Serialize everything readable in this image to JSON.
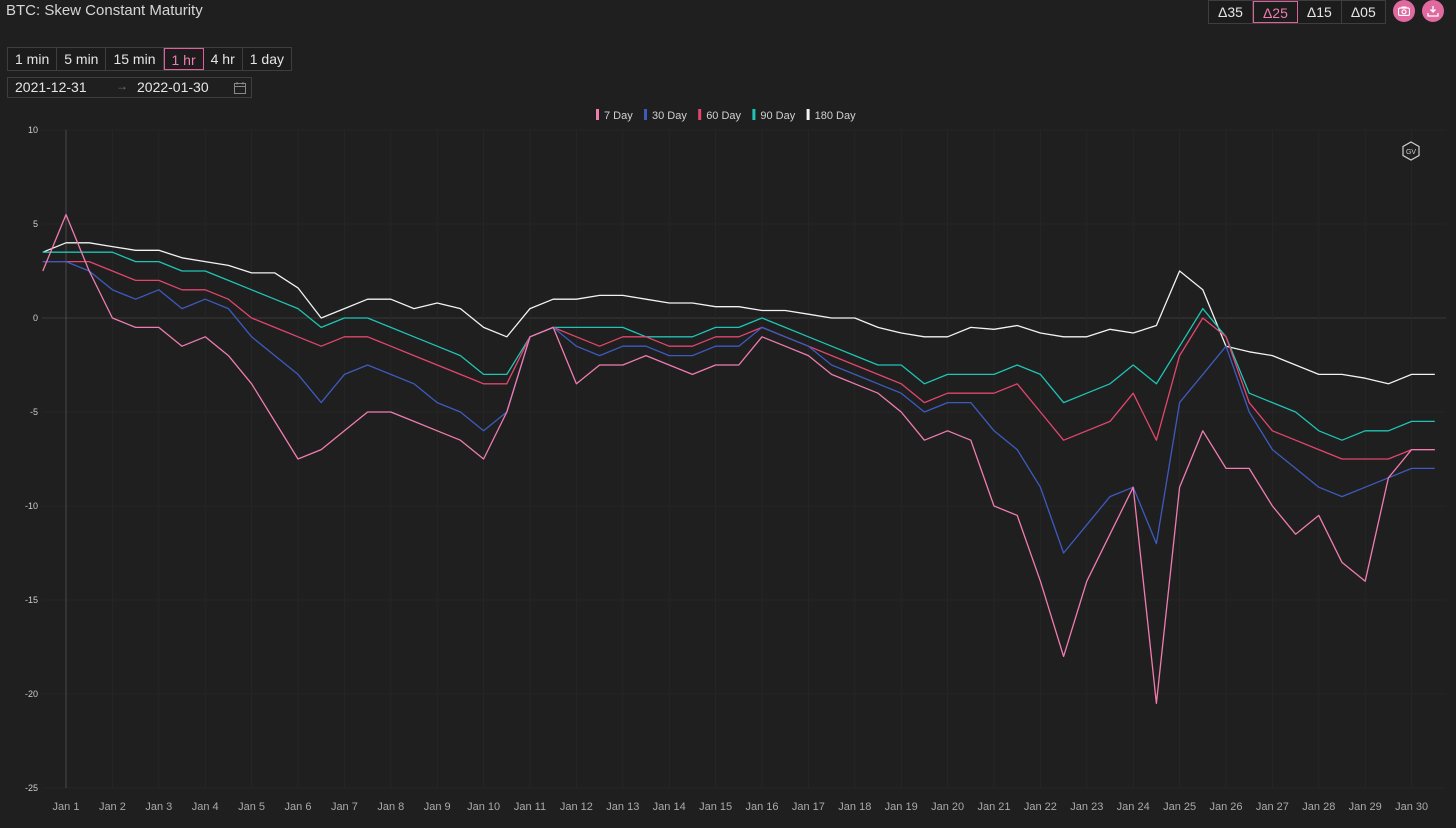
{
  "app": {
    "title": "BTC: Skew Constant Maturity"
  },
  "interval_buttons": [
    {
      "label": "1 min",
      "active": false
    },
    {
      "label": "5 min",
      "active": false
    },
    {
      "label": "15 min",
      "active": false
    },
    {
      "label": "1 hr",
      "active": true
    },
    {
      "label": "4 hr",
      "active": false
    },
    {
      "label": "1 day",
      "active": false
    }
  ],
  "delta_buttons": [
    {
      "label": "Δ35",
      "active": false
    },
    {
      "label": "Δ25",
      "active": true
    },
    {
      "label": "Δ15",
      "active": false
    },
    {
      "label": "Δ05",
      "active": false
    }
  ],
  "toolbar_icons": [
    "camera-icon",
    "download-icon"
  ],
  "date_range": {
    "start": "2021-12-31",
    "separator": "→",
    "end": "2022-01-30"
  },
  "watermark": {
    "text": "GV"
  },
  "chart_data": {
    "type": "line",
    "title": "BTC: Skew Constant Maturity",
    "ylim": [
      -25,
      10
    ],
    "yticks": [
      10,
      5,
      0,
      -5,
      -10,
      -15,
      -20,
      -25
    ],
    "xticks": [
      "Jan 1",
      "Jan 2",
      "Jan 3",
      "Jan 4",
      "Jan 5",
      "Jan 6",
      "Jan 7",
      "Jan 8",
      "Jan 9",
      "Jan 10",
      "Jan 11",
      "Jan 12",
      "Jan 13",
      "Jan 14",
      "Jan 15",
      "Jan 16",
      "Jan 17",
      "Jan 18",
      "Jan 19",
      "Jan 20",
      "Jan 21",
      "Jan 22",
      "Jan 23",
      "Jan 24",
      "Jan 25",
      "Jan 26",
      "Jan 27",
      "Jan 28",
      "Jan 29",
      "Jan 30"
    ],
    "x": [
      "Dec 31 12h",
      "Jan 1",
      "Jan 1 12h",
      "Jan 2",
      "Jan 2 12h",
      "Jan 3",
      "Jan 3 12h",
      "Jan 4",
      "Jan 4 12h",
      "Jan 5",
      "Jan 5 12h",
      "Jan 6",
      "Jan 6 12h",
      "Jan 7",
      "Jan 7 12h",
      "Jan 8",
      "Jan 8 12h",
      "Jan 9",
      "Jan 9 12h",
      "Jan 10",
      "Jan 10 12h",
      "Jan 11",
      "Jan 11 12h",
      "Jan 12",
      "Jan 12 12h",
      "Jan 13",
      "Jan 13 12h",
      "Jan 14",
      "Jan 14 12h",
      "Jan 15",
      "Jan 15 12h",
      "Jan 16",
      "Jan 16 12h",
      "Jan 17",
      "Jan 17 12h",
      "Jan 18",
      "Jan 18 12h",
      "Jan 19",
      "Jan 19 12h",
      "Jan 20",
      "Jan 20 12h",
      "Jan 21",
      "Jan 21 12h",
      "Jan 22",
      "Jan 22 12h",
      "Jan 23",
      "Jan 23 12h",
      "Jan 24",
      "Jan 24 12h",
      "Jan 25",
      "Jan 25 12h",
      "Jan 26",
      "Jan 26 12h",
      "Jan 27",
      "Jan 27 12h",
      "Jan 28",
      "Jan 28 12h",
      "Jan 29",
      "Jan 29 12h",
      "Jan 30",
      "Jan 30 12h"
    ],
    "legend_position": "top-center",
    "series": [
      {
        "name": "7 Day",
        "color": "#f07cb0",
        "values": [
          2.5,
          5.5,
          2.5,
          0,
          -0.5,
          -0.5,
          -1.5,
          -1,
          -2,
          -3.5,
          -5.5,
          -7.5,
          -7,
          -6,
          -5,
          -5,
          -5.5,
          -6,
          -6.5,
          -7.5,
          -5,
          -1,
          -0.5,
          -3.5,
          -2.5,
          -2.5,
          -2,
          -2.5,
          -3,
          -2.5,
          -2.5,
          -1,
          -1.5,
          -2,
          -3,
          -3.5,
          -4,
          -5,
          -6.5,
          -6,
          -6.5,
          -10,
          -10.5,
          -14,
          -18,
          -14,
          -11.5,
          -9,
          -20.5,
          -9,
          -6,
          -8,
          -8,
          -10,
          -11.5,
          -10.5,
          -13,
          -14,
          -8.5,
          -7,
          -7
        ]
      },
      {
        "name": "30 Day",
        "color": "#3d5bbf",
        "values": [
          3,
          3,
          2.5,
          1.5,
          1,
          1.5,
          0.5,
          1,
          0.5,
          -1,
          -2,
          -3,
          -4.5,
          -3,
          -2.5,
          -3,
          -3.5,
          -4.5,
          -5,
          -6,
          -5,
          -1,
          -0.5,
          -1.5,
          -2,
          -1.5,
          -1.5,
          -2,
          -2,
          -1.5,
          -1.5,
          -0.5,
          -1,
          -1.5,
          -2.5,
          -3,
          -3.5,
          -4,
          -5,
          -4.5,
          -4.5,
          -6,
          -7,
          -9,
          -12.5,
          -11,
          -9.5,
          -9,
          -12,
          -4.5,
          -3,
          -1.5,
          -5,
          -7,
          -8,
          -9,
          -9.5,
          -9,
          -8.5,
          -8,
          -8
        ]
      },
      {
        "name": "60 Day",
        "color": "#e2466e",
        "values": [
          3,
          3,
          3,
          2.5,
          2,
          2,
          1.5,
          1.5,
          1,
          0,
          -0.5,
          -1,
          -1.5,
          -1,
          -1,
          -1.5,
          -2,
          -2.5,
          -3,
          -3.5,
          -3.5,
          -1,
          -0.5,
          -1,
          -1.5,
          -1,
          -1,
          -1.5,
          -1.5,
          -1,
          -1,
          -0.5,
          -1,
          -1.5,
          -2,
          -2.5,
          -3,
          -3.5,
          -4.5,
          -4,
          -4,
          -4,
          -3.5,
          -5,
          -6.5,
          -6,
          -5.5,
          -4,
          -6.5,
          -2,
          0,
          -1,
          -4.5,
          -6,
          -6.5,
          -7,
          -7.5,
          -7.5,
          -7.5,
          -7,
          -7
        ]
      },
      {
        "name": "90 Day",
        "color": "#1fc4b4",
        "values": [
          3.5,
          3.5,
          3.5,
          3.5,
          3,
          3,
          2.5,
          2.5,
          2,
          1.5,
          1,
          0.5,
          -0.5,
          0,
          0,
          -0.5,
          -1,
          -1.5,
          -2,
          -3,
          -3,
          -1,
          -0.5,
          -0.5,
          -0.5,
          -0.5,
          -1,
          -1,
          -1,
          -0.5,
          -0.5,
          0,
          -0.5,
          -1,
          -1.5,
          -2,
          -2.5,
          -2.5,
          -3.5,
          -3,
          -3,
          -3,
          -2.5,
          -3,
          -4.5,
          -4,
          -3.5,
          -2.5,
          -3.5,
          -1.5,
          0.5,
          -1,
          -4,
          -4.5,
          -5,
          -6,
          -6.5,
          -6,
          -6,
          -5.5,
          -5.5
        ]
      },
      {
        "name": "180 Day",
        "color": "#f2f2f2",
        "values": [
          3.5,
          4,
          4,
          3.8,
          3.6,
          3.6,
          3.2,
          3,
          2.8,
          2.4,
          2.4,
          1.6,
          0,
          0.5,
          1,
          1,
          0.5,
          0.8,
          0.5,
          -0.5,
          -1,
          0.5,
          1,
          1,
          1.2,
          1.2,
          1,
          0.8,
          0.8,
          0.6,
          0.6,
          0.4,
          0.4,
          0.2,
          0,
          0,
          -0.5,
          -0.8,
          -1,
          -1,
          -0.5,
          -0.6,
          -0.4,
          -0.8,
          -1,
          -1,
          -0.6,
          -0.8,
          -0.4,
          2.5,
          1.5,
          -1.5,
          -1.8,
          -2,
          -2.5,
          -3,
          -3,
          -3.2,
          -3.5,
          -3,
          -3
        ]
      }
    ]
  }
}
